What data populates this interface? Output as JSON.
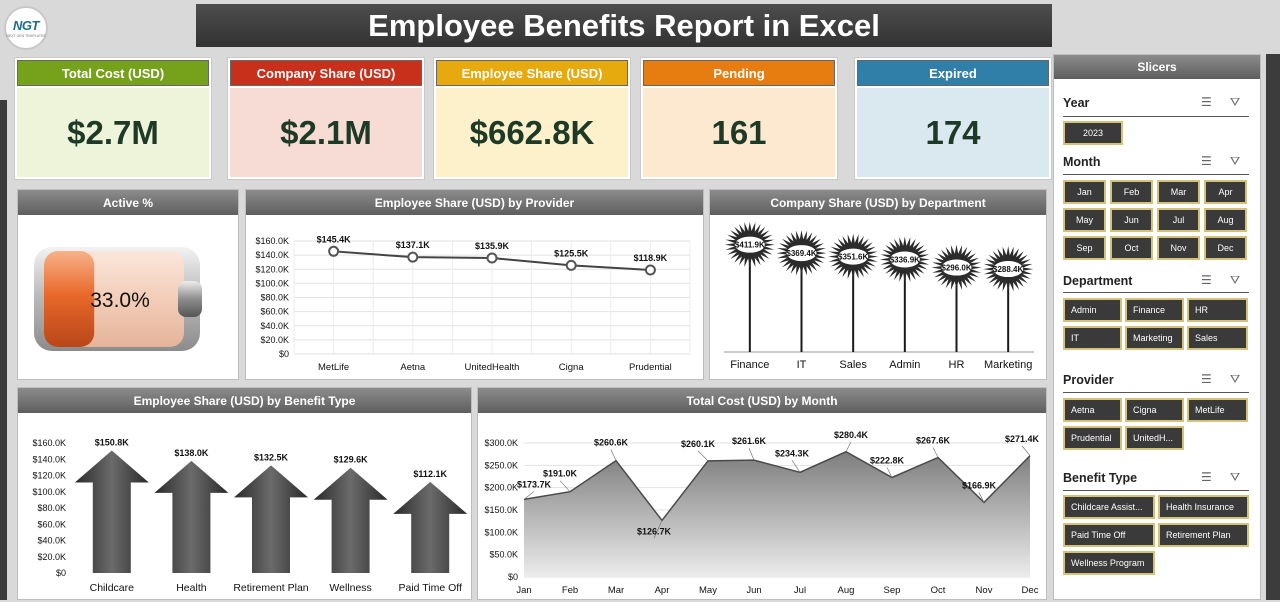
{
  "header": {
    "logo_text": "NGT",
    "logo_sub": "NEXT GEN TEMPLATES",
    "title": "Employee Benefits Report in Excel"
  },
  "kpis": [
    {
      "label": "Total Cost (USD)",
      "value": "$2.7M",
      "head_color": "#75a21a",
      "body_color": "#eef4da"
    },
    {
      "label": "Company Share (USD)",
      "value": "$2.1M",
      "head_color": "#c8301b",
      "body_color": "#f7dcd6"
    },
    {
      "label": "Employee Share (USD)",
      "value": "$662.8K",
      "head_color": "#e6a90e",
      "body_color": "#fdf1cc"
    },
    {
      "label": "Pending",
      "value": "161",
      "head_color": "#e77d10",
      "body_color": "#fde9cf"
    },
    {
      "label": "Expired",
      "value": "174",
      "head_color": "#2f7fa9",
      "body_color": "#dae8ef"
    }
  ],
  "active": {
    "title": "Active %",
    "value": "33.0%",
    "percent": 33.0
  },
  "provider_chart": {
    "title": "Employee Share (USD) by Provider"
  },
  "department_chart": {
    "title": "Company Share (USD) by Department"
  },
  "benefit_chart": {
    "title": "Employee Share (USD) by Benefit Type"
  },
  "month_chart": {
    "title": "Total Cost (USD) by Month"
  },
  "chart_data": [
    {
      "type": "line",
      "title": "Employee Share (USD) by Provider",
      "categories": [
        "MetLife",
        "Aetna",
        "UnitedHealth",
        "Cigna",
        "Prudential"
      ],
      "values": [
        145.4,
        137.1,
        135.9,
        125.5,
        118.9
      ],
      "labels": [
        "$145.4K",
        "$137.1K",
        "$135.9K",
        "$125.5K",
        "$118.9K"
      ],
      "ylim": [
        0,
        160
      ],
      "yticks": [
        "$0",
        "$20.0K",
        "$40.0K",
        "$60.0K",
        "$80.0K",
        "$100.0K",
        "$120.0K",
        "$140.0K",
        "$160.0K"
      ]
    },
    {
      "type": "bar",
      "title": "Company Share (USD) by Department",
      "categories": [
        "Finance",
        "IT",
        "Sales",
        "Admin",
        "HR",
        "Marketing"
      ],
      "values": [
        411.9,
        369.4,
        351.6,
        336.9,
        296.0,
        288.4
      ],
      "labels": [
        "$411.9K",
        "$369.4K",
        "$351.6K",
        "$336.9K",
        "$296.0K",
        "$288.4K"
      ]
    },
    {
      "type": "bar",
      "title": "Employee Share (USD) by Benefit Type",
      "categories": [
        "Childcare Assist...",
        "Health Insurance",
        "Retirement Plan",
        "Wellness Program",
        "Paid Time Off"
      ],
      "tick_labels": [
        "Childcare",
        "Health",
        "Retirement Plan",
        "Wellness",
        "Paid Time Off"
      ],
      "values": [
        150.8,
        138.0,
        132.5,
        129.6,
        112.1
      ],
      "labels": [
        "$150.8K",
        "$138.0K",
        "$132.5K",
        "$129.6K",
        "$112.1K"
      ],
      "ylim": [
        0,
        160
      ],
      "yticks": [
        "$0",
        "$20.0K",
        "$40.0K",
        "$60.0K",
        "$80.0K",
        "$100.0K",
        "$120.0K",
        "$140.0K",
        "$160.0K"
      ]
    },
    {
      "type": "area",
      "title": "Total Cost (USD) by Month",
      "categories": [
        "Jan",
        "Feb",
        "Mar",
        "Apr",
        "May",
        "Jun",
        "Jul",
        "Aug",
        "Sep",
        "Oct",
        "Nov",
        "Dec"
      ],
      "values": [
        173.7,
        191.0,
        260.6,
        126.7,
        260.1,
        261.6,
        234.3,
        280.4,
        222.8,
        267.6,
        166.9,
        271.4
      ],
      "labels": [
        "$173.7K",
        "$191.0K",
        "$260.6K",
        "$126.7K",
        "$260.1K",
        "$261.6K",
        "$234.3K",
        "$280.4K",
        "$222.8K",
        "$267.6K",
        "$166.9K",
        "$271.4K"
      ],
      "ylim": [
        0,
        300
      ],
      "yticks": [
        "$0",
        "$50.0K",
        "$100.0K",
        "$150.0K",
        "$200.0K",
        "$250.0K",
        "$300.0K"
      ]
    }
  ],
  "slicers": {
    "title": "Slicers",
    "year": {
      "title": "Year",
      "items": [
        "2023"
      ]
    },
    "month": {
      "title": "Month",
      "items": [
        "Jan",
        "Feb",
        "Mar",
        "Apr",
        "May",
        "Jun",
        "Jul",
        "Aug",
        "Sep",
        "Oct",
        "Nov",
        "Dec"
      ]
    },
    "department": {
      "title": "Department",
      "items": [
        "Admin",
        "Finance",
        "HR",
        "IT",
        "Marketing",
        "Sales"
      ]
    },
    "provider": {
      "title": "Provider",
      "items": [
        "Aetna",
        "Cigna",
        "MetLife",
        "Prudential",
        "UnitedH..."
      ]
    },
    "benefit": {
      "title": "Benefit Type",
      "items": [
        "Childcare Assist...",
        "Health Insurance",
        "Paid Time Off",
        "Retirement Plan",
        "Wellness Program"
      ]
    }
  }
}
